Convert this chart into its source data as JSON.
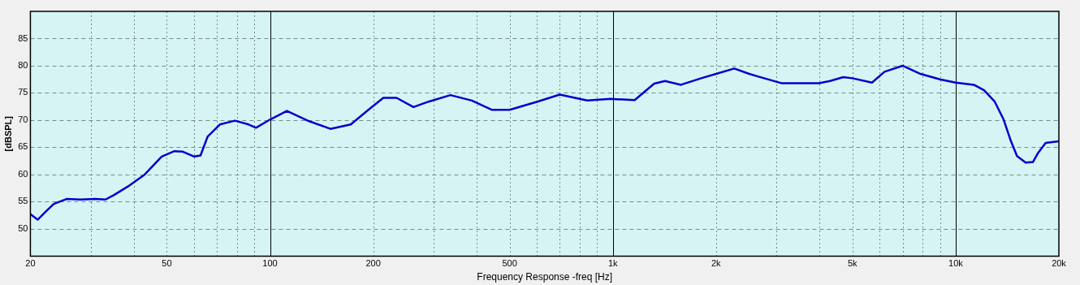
{
  "chart_data": {
    "type": "line",
    "xlabel": "Frequency Response -freq [Hz]",
    "ylabel": "[dBSPL]",
    "log": "x",
    "grid": true,
    "legend": false,
    "marker": "none",
    "line_style": "solid",
    "xlim": [
      20,
      20000
    ],
    "xticks": [
      20,
      {
        "value": 30,
        "label": null
      },
      {
        "value": 40,
        "label": null
      },
      50,
      {
        "value": 60,
        "label": null
      },
      {
        "value": 70,
        "label": null
      },
      {
        "value": 80,
        "label": null
      },
      {
        "value": 90,
        "label": null
      },
      100,
      200,
      {
        "value": 300,
        "label": null
      },
      {
        "value": 400,
        "label": null
      },
      500,
      {
        "value": 600,
        "label": null
      },
      {
        "value": 700,
        "label": null
      },
      {
        "value": 800,
        "label": null
      },
      {
        "value": 900,
        "label": null
      },
      {
        "value": 1000,
        "label": "1k"
      },
      {
        "value": 2000,
        "label": "2k"
      },
      {
        "value": 3000,
        "label": null
      },
      {
        "value": 4000,
        "label": null
      },
      {
        "value": 5000,
        "label": "5k"
      },
      {
        "value": 6000,
        "label": null
      },
      {
        "value": 7000,
        "label": null
      },
      {
        "value": 8000,
        "label": null
      },
      {
        "value": 9000,
        "label": null
      },
      {
        "value": 10000,
        "label": "10k"
      },
      {
        "value": 20000,
        "label": "20k"
      }
    ],
    "ylim": [
      45,
      90
    ],
    "yticks": [
      50,
      55,
      60,
      65,
      70,
      75,
      80,
      85
    ],
    "series": [
      {
        "color": "#0000cc",
        "x": [
          20,
          21,
          22.2,
          23.4,
          25.5,
          28,
          31,
          33.1,
          35,
          38.5,
          43.1,
          48.3,
          52.6,
          55.7,
          60.1,
          62.7,
          65.8,
          71.4,
          79,
          86.6,
          91,
          100,
          112,
          130,
          150,
          172,
          192,
          214,
          234,
          262,
          290,
          336,
          388,
          443,
          500,
          602,
          700,
          842,
          985,
          1158,
          1320,
          1420,
          1580,
          1810,
          2000,
          2260,
          2500,
          2660,
          3100,
          4000,
          4300,
          4700,
          5000,
          5700,
          6200,
          7000,
          7900,
          9000,
          10000,
          11300,
          12100,
          13000,
          13800,
          14500,
          15100,
          16000,
          16800,
          17400,
          18300,
          20000
        ],
        "values": [
          52.7,
          51.7,
          53.2,
          54.6,
          55.5,
          55.4,
          55.5,
          55.4,
          56.2,
          57.8,
          60,
          63.3,
          64.3,
          64.2,
          63.3,
          63.5,
          67,
          69.2,
          69.9,
          69.2,
          68.6,
          70.1,
          71.7,
          69.8,
          68.4,
          69.2,
          71.7,
          74.1,
          74.1,
          72.4,
          73.4,
          74.6,
          73.6,
          71.9,
          71.9,
          73.4,
          74.7,
          73.6,
          73.9,
          73.7,
          76.7,
          77.2,
          76.5,
          77.7,
          78.5,
          79.5,
          78.5,
          78,
          76.8,
          76.8,
          77.2,
          77.9,
          77.7,
          76.9,
          78.9,
          80,
          78.5,
          77.5,
          76.9,
          76.5,
          75.5,
          73.4,
          70.1,
          66.1,
          63.4,
          62.2,
          62.3,
          64,
          65.8,
          66.1
        ]
      }
    ]
  }
}
